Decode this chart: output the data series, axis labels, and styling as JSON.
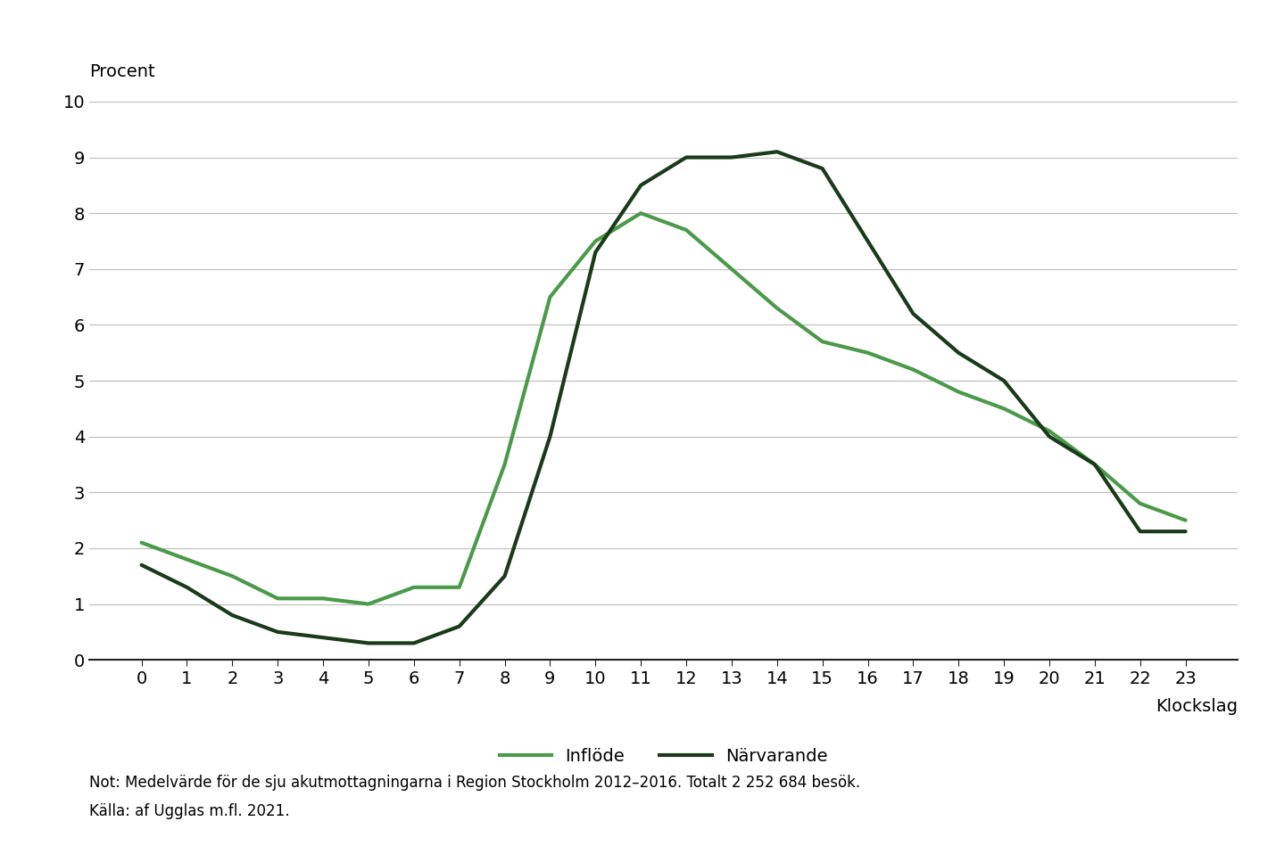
{
  "hours": [
    0,
    1,
    2,
    3,
    4,
    5,
    6,
    7,
    8,
    9,
    10,
    11,
    12,
    13,
    14,
    15,
    16,
    17,
    18,
    19,
    20,
    21,
    22,
    23
  ],
  "inflode": [
    2.1,
    1.8,
    1.5,
    1.1,
    1.1,
    1.0,
    1.3,
    1.3,
    3.5,
    6.5,
    7.5,
    8.0,
    7.7,
    7.0,
    6.3,
    5.7,
    5.5,
    5.2,
    4.8,
    4.5,
    4.1,
    3.5,
    2.8,
    2.5
  ],
  "narvarande": [
    1.7,
    1.3,
    0.8,
    0.5,
    0.4,
    0.3,
    0.3,
    0.6,
    1.5,
    4.0,
    7.3,
    8.5,
    9.0,
    9.0,
    9.1,
    8.8,
    7.5,
    6.2,
    5.5,
    5.0,
    4.0,
    3.5,
    2.3,
    2.3
  ],
  "inflode_color": "#4a9a4a",
  "narvarande_color": "#1a3a1a",
  "line_width": 3.0,
  "ylabel": "Procent",
  "xlabel": "Klockslag",
  "ylim": [
    0,
    10
  ],
  "yticks": [
    0,
    1,
    2,
    3,
    4,
    5,
    6,
    7,
    8,
    9,
    10
  ],
  "legend_labels": [
    "Inflöde",
    "Närvarande"
  ],
  "note_line1": "Not: Medelvärde för de sju akutmottagningarna i Region Stockholm 2012–2016. Totalt 2 252 684 besök.",
  "note_line2": "Källa: af Ugglas m.fl. 2021.",
  "background_color": "#ffffff",
  "grid_color": "#bbbbbb",
  "tick_fontsize": 14,
  "label_fontsize": 14,
  "note_fontsize": 12,
  "legend_fontsize": 14
}
